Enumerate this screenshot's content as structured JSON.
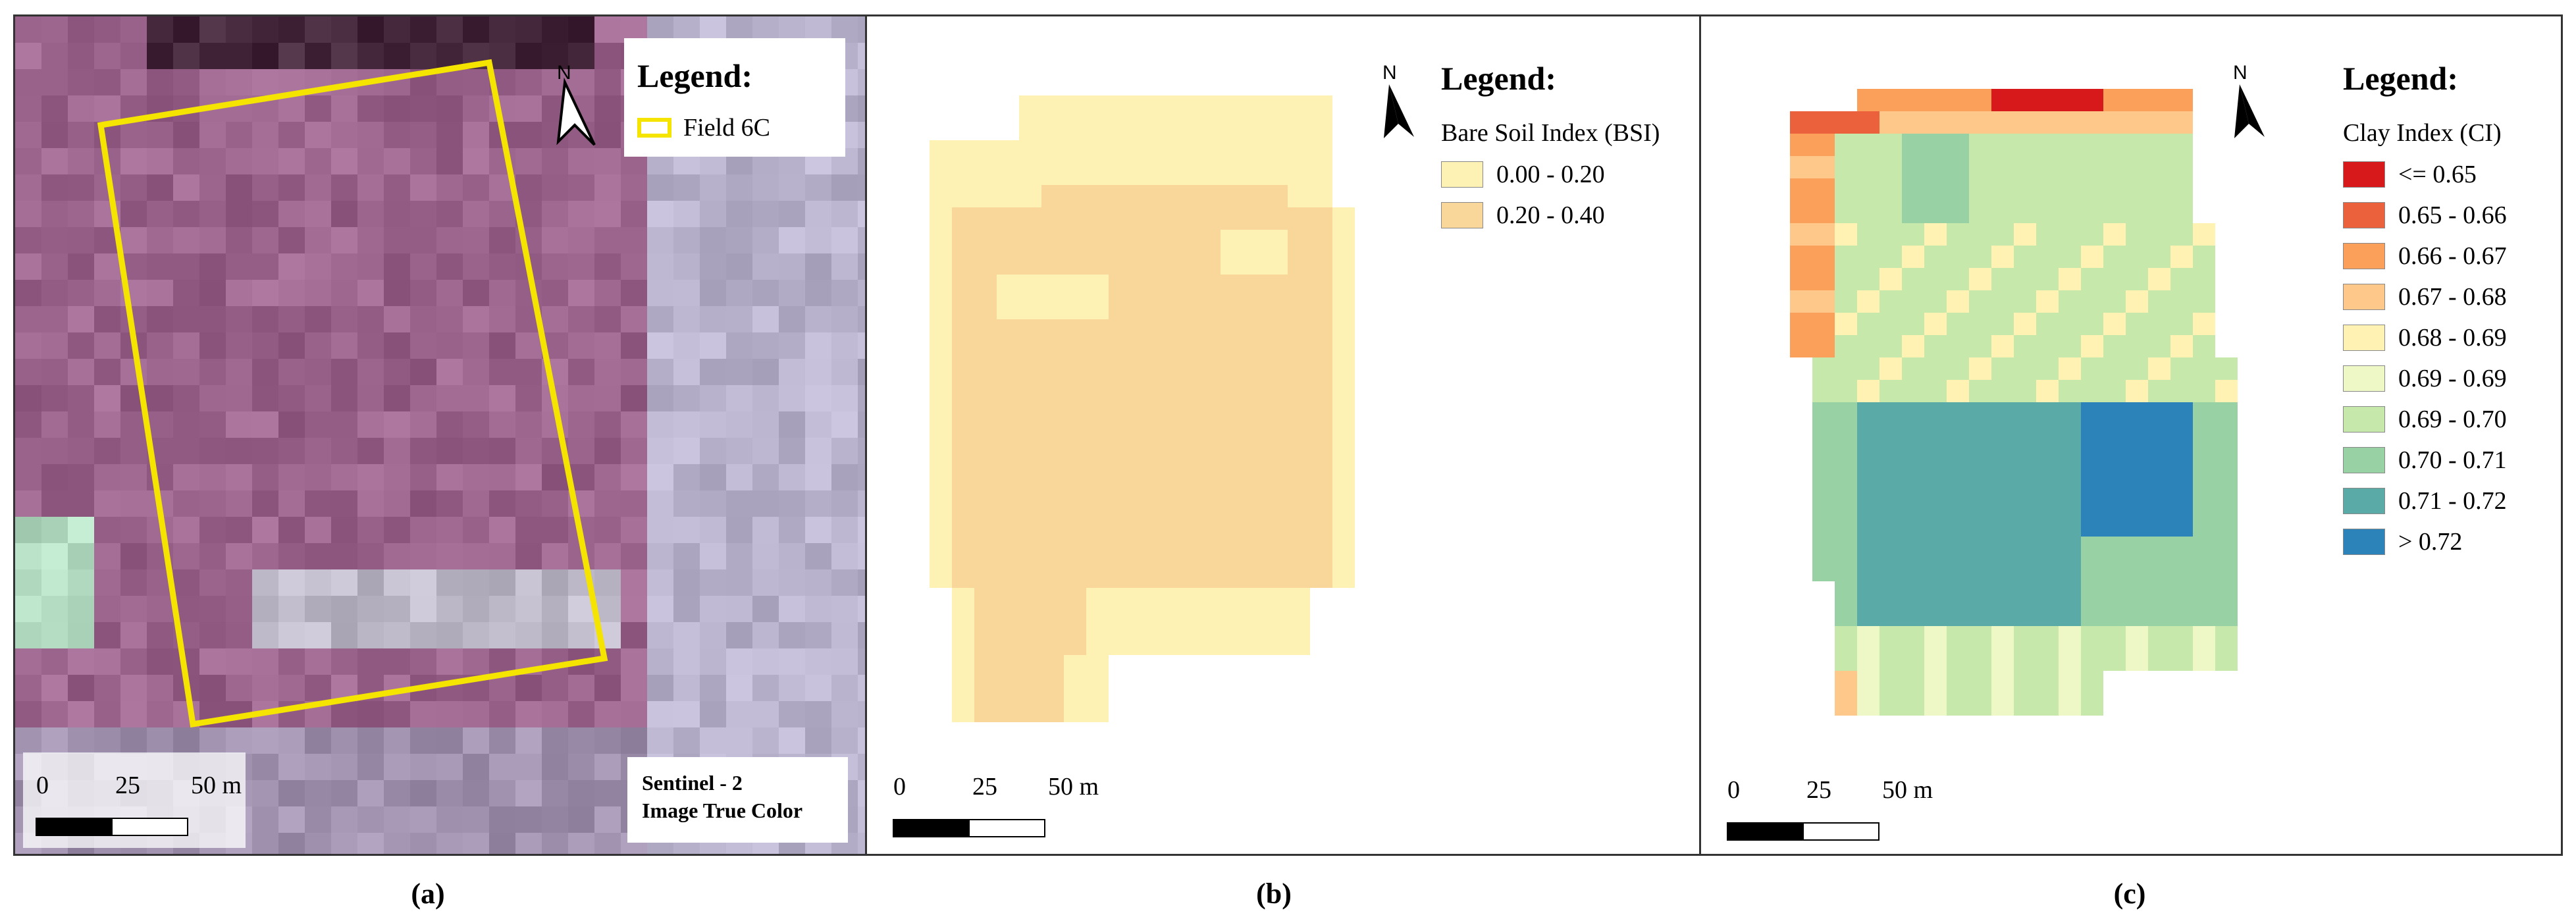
{
  "panels": [
    {
      "id": "a",
      "caption": "(a)",
      "legend_title": "Legend:",
      "legend_items": [
        {
          "label": "Field 6C",
          "stroke": "#f5e400"
        }
      ],
      "source_lines": [
        "Sentinel - 2",
        "Image True Color"
      ],
      "scalebar": {
        "labels": [
          "0",
          "25",
          "50 m"
        ]
      },
      "north": "N"
    },
    {
      "id": "b",
      "caption": "(b)",
      "legend_title": "Legend:",
      "legend_subtitle": "Bare Soil Index (BSI)",
      "legend_items": [
        {
          "label": "0.00 - 0.20",
          "color": "#fdf1b4"
        },
        {
          "label": "0.20 - 0.40",
          "color": "#f9d79b"
        }
      ],
      "scalebar": {
        "labels": [
          "0",
          "25",
          "50 m"
        ]
      },
      "north": "N"
    },
    {
      "id": "c",
      "caption": "(c)",
      "legend_title": "Legend:",
      "legend_subtitle": "Clay Index (CI)",
      "legend_items": [
        {
          "label": "<= 0.65",
          "color": "#d7191c"
        },
        {
          "label": "0.65 - 0.66",
          "color": "#ea613b"
        },
        {
          "label": "0.66 - 0.67",
          "color": "#fba05a"
        },
        {
          "label": "0.67 - 0.68",
          "color": "#fec88a"
        },
        {
          "label": "0.68 - 0.69",
          "color": "#fff2b3"
        },
        {
          "label": "0.69 - 0.69",
          "color": "#eef7c6"
        },
        {
          "label": "0.69 - 0.70",
          "color": "#c7e8ab"
        },
        {
          "label": "0.70 - 0.71",
          "color": "#98d1a3"
        },
        {
          "label": "0.71 - 0.72",
          "color": "#5aaaa8"
        },
        {
          "label": "> 0.72",
          "color": "#2b83ba"
        }
      ],
      "scalebar": {
        "labels": [
          "0",
          "25",
          "50 m"
        ]
      },
      "north": "N"
    }
  ]
}
